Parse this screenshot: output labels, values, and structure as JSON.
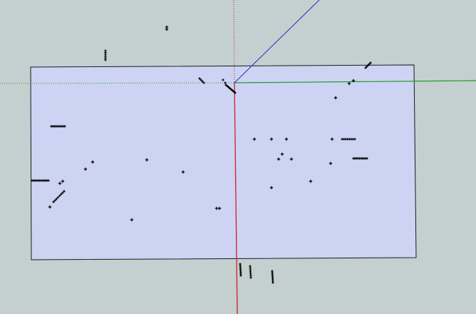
{
  "viewport": {
    "background": "#c4d0d0",
    "face_fill": "#cdd3f2",
    "face_edge": "#1a1a1a",
    "axis_red": "#cc1f1f",
    "axis_green": "#1f9a2a",
    "axis_blue": "#1f2fbf",
    "point_color": "#000000",
    "icons": {
      "point": "cross-marker-icon"
    }
  }
}
